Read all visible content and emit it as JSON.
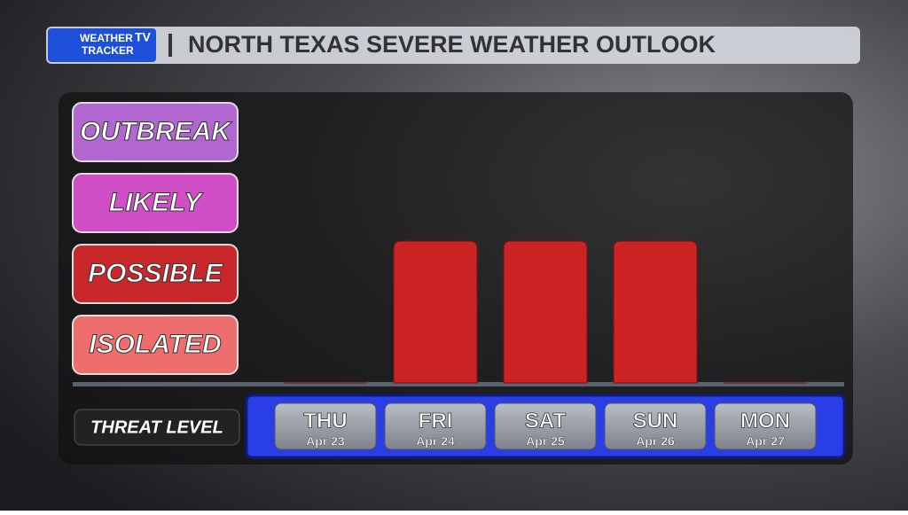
{
  "logo": {
    "line1": "WEATHER",
    "badge": "TV",
    "line2": "TRACKER"
  },
  "chart_data": {
    "type": "bar",
    "title": "NORTH TEXAS SEVERE WEATHER OUTLOOK",
    "categories": [
      "THU",
      "FRI",
      "SAT",
      "SUN",
      "MON"
    ],
    "dates": [
      "Apr 23",
      "Apr 24",
      "Apr 25",
      "Apr 26",
      "Apr 27"
    ],
    "values": [
      0,
      2,
      2,
      2,
      0
    ],
    "color": "#cc2424",
    "ylim": [
      0,
      4
    ],
    "yticks": [
      {
        "value": 1,
        "label": "ISOLATED"
      },
      {
        "value": 2,
        "label": "POSSIBLE"
      },
      {
        "value": 3,
        "label": "LIKELY"
      },
      {
        "value": 4,
        "label": "OUTBREAK"
      }
    ],
    "ytick_colors": [
      "#ee6d6d",
      "#c9272a",
      "#d04fc6",
      "#b266cf"
    ],
    "xlabel": "THREAT LEVEL"
  }
}
